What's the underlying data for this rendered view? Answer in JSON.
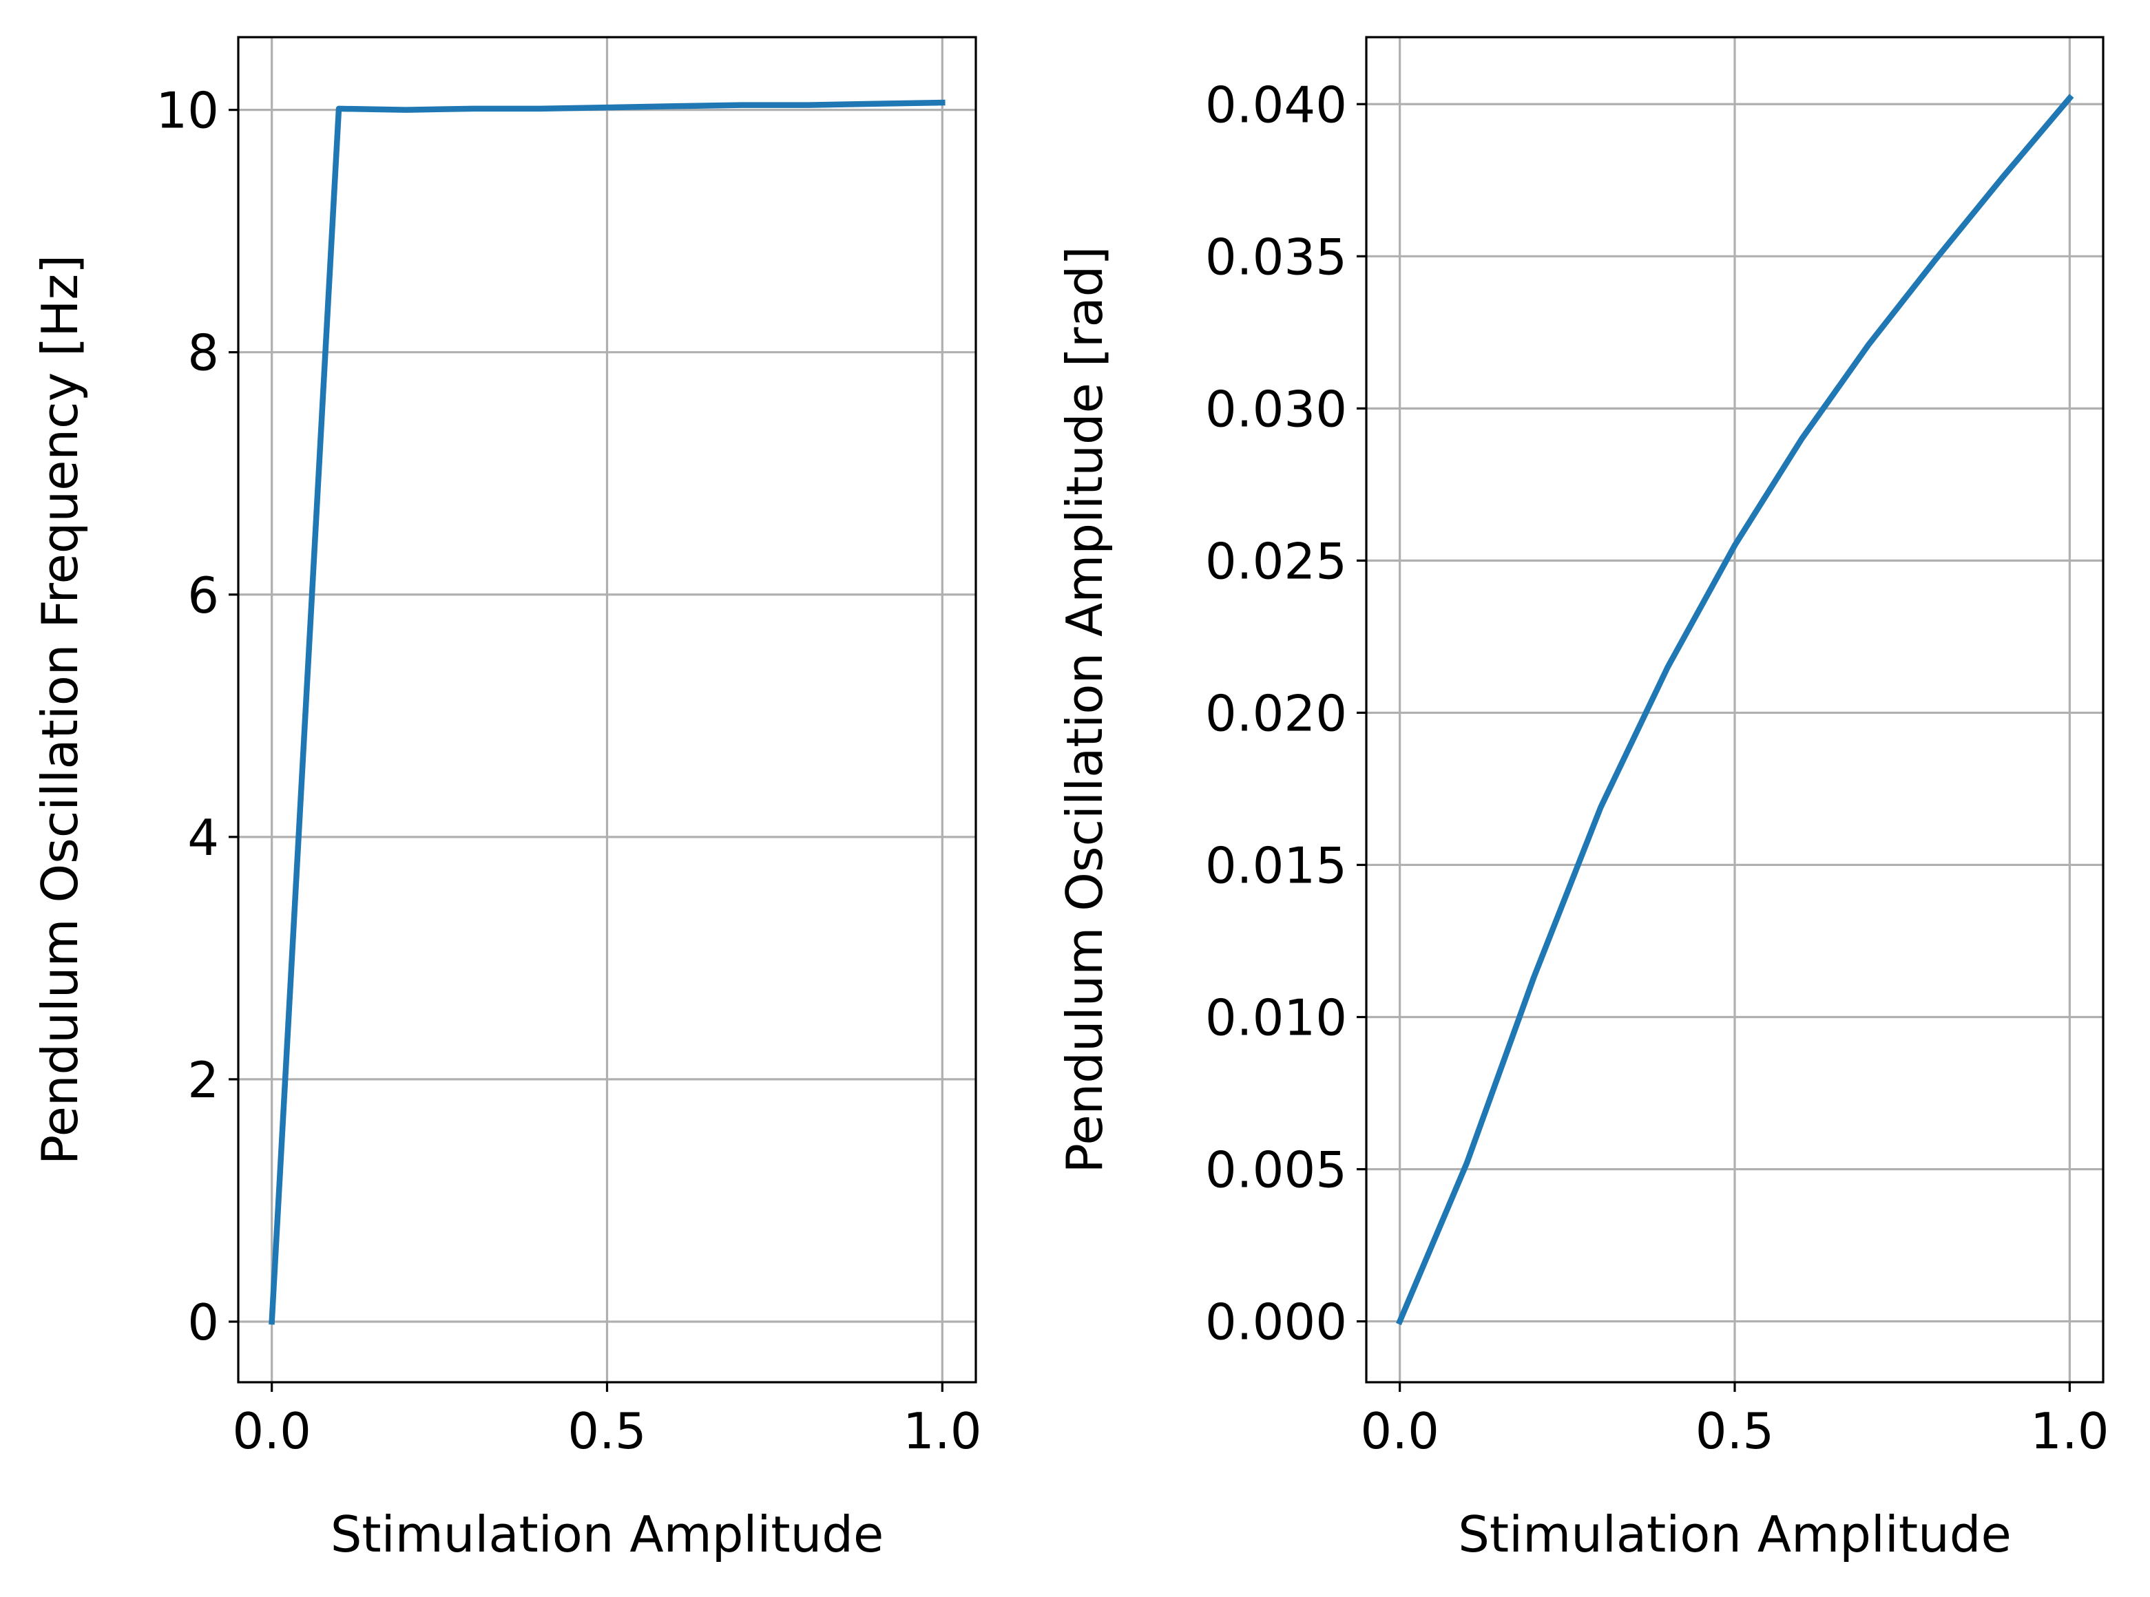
{
  "chart_data": [
    {
      "type": "line",
      "xlabel": "Stimulation Amplitude",
      "ylabel": "Pendulum Oscillation Frequency [Hz]",
      "xlim": [
        -0.05,
        1.05
      ],
      "ylim": [
        -0.5,
        10.6
      ],
      "x_ticks": [
        0.0,
        0.5,
        1.0
      ],
      "x_tick_labels": [
        "0.0",
        "0.5",
        "1.0"
      ],
      "y_ticks": [
        0,
        2,
        4,
        6,
        8,
        10
      ],
      "y_tick_labels": [
        "0",
        "2",
        "4",
        "6",
        "8",
        "10"
      ],
      "grid": true,
      "series": [
        {
          "color": "#1f77b4",
          "x": [
            0.0,
            0.1,
            0.2,
            0.3,
            0.4,
            0.5,
            0.6,
            0.7,
            0.8,
            0.9,
            1.0
          ],
          "y": [
            0.0,
            10.01,
            10.0,
            10.01,
            10.01,
            10.02,
            10.03,
            10.04,
            10.04,
            10.05,
            10.06
          ]
        }
      ]
    },
    {
      "type": "line",
      "xlabel": "Stimulation Amplitude",
      "ylabel": "Pendulum Oscillation Amplitude [rad]",
      "xlim": [
        -0.05,
        1.05
      ],
      "ylim": [
        -0.002,
        0.0422
      ],
      "x_ticks": [
        0.0,
        0.5,
        1.0
      ],
      "x_tick_labels": [
        "0.0",
        "0.5",
        "1.0"
      ],
      "y_ticks": [
        0.0,
        0.005,
        0.01,
        0.015,
        0.02,
        0.025,
        0.03,
        0.035,
        0.04
      ],
      "y_tick_labels": [
        "0.000",
        "0.005",
        "0.010",
        "0.015",
        "0.020",
        "0.025",
        "0.030",
        "0.035",
        "0.040"
      ],
      "grid": true,
      "series": [
        {
          "color": "#1f77b4",
          "x": [
            0.0,
            0.1,
            0.2,
            0.3,
            0.4,
            0.5,
            0.6,
            0.7,
            0.8,
            0.9,
            1.0
          ],
          "y": [
            0.0,
            0.0052,
            0.0113,
            0.0169,
            0.0215,
            0.0255,
            0.029,
            0.0321,
            0.0349,
            0.0376,
            0.0402
          ]
        }
      ]
    }
  ]
}
